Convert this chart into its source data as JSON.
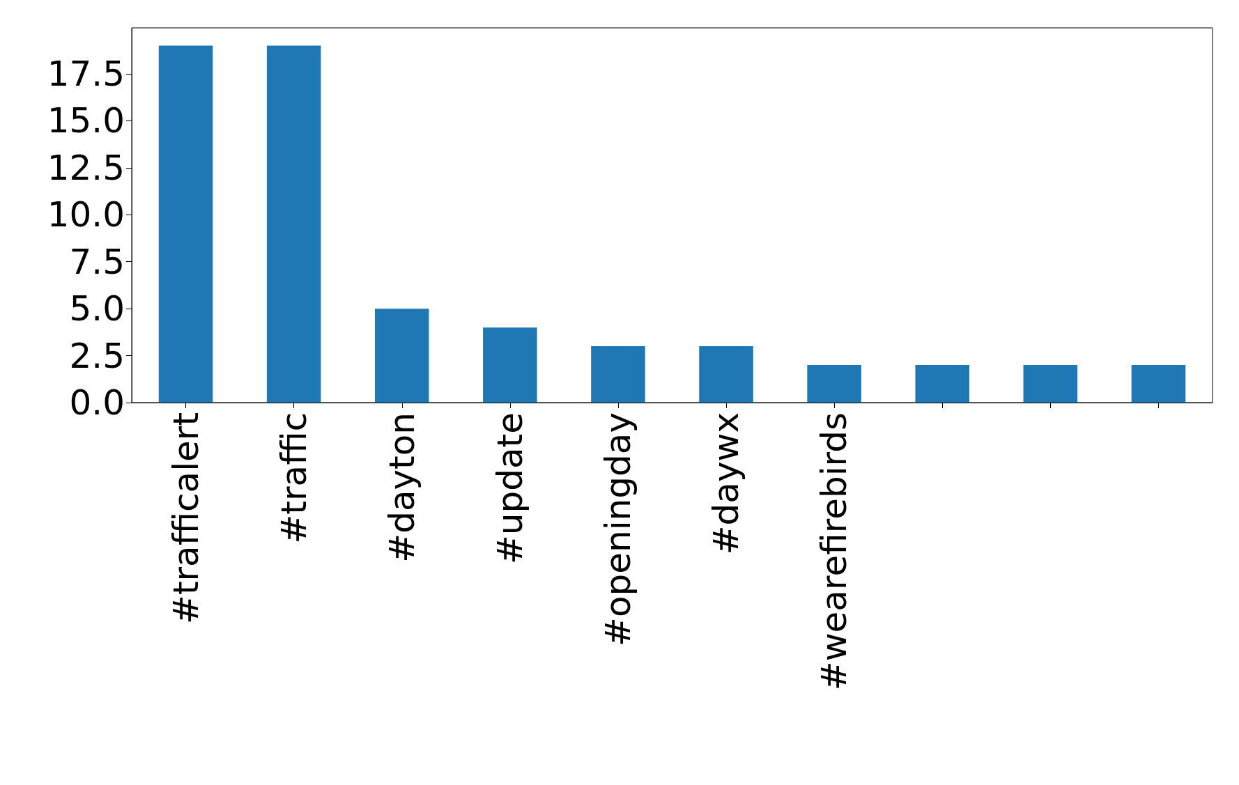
{
  "chart_data": {
    "type": "bar",
    "categories": [
      "#trafficalert",
      "#traffic",
      "#dayton",
      "#update",
      "#openingday",
      "#daywx",
      "#wearefirebirds",
      null,
      null,
      null
    ],
    "values": [
      19,
      19,
      5,
      4,
      3,
      3,
      2,
      2,
      2,
      2
    ],
    "color": "#1f77b4",
    "ylim": [
      0,
      19.95
    ],
    "yticks": [
      {
        "value": 0,
        "label": "0.0"
      },
      2.5,
      {
        "value": 5,
        "label": "5.0"
      },
      7.5,
      {
        "value": 10,
        "label": "10.0"
      },
      12.5,
      {
        "value": 15,
        "label": "15.0"
      },
      17.5
    ],
    "grid": false
  }
}
